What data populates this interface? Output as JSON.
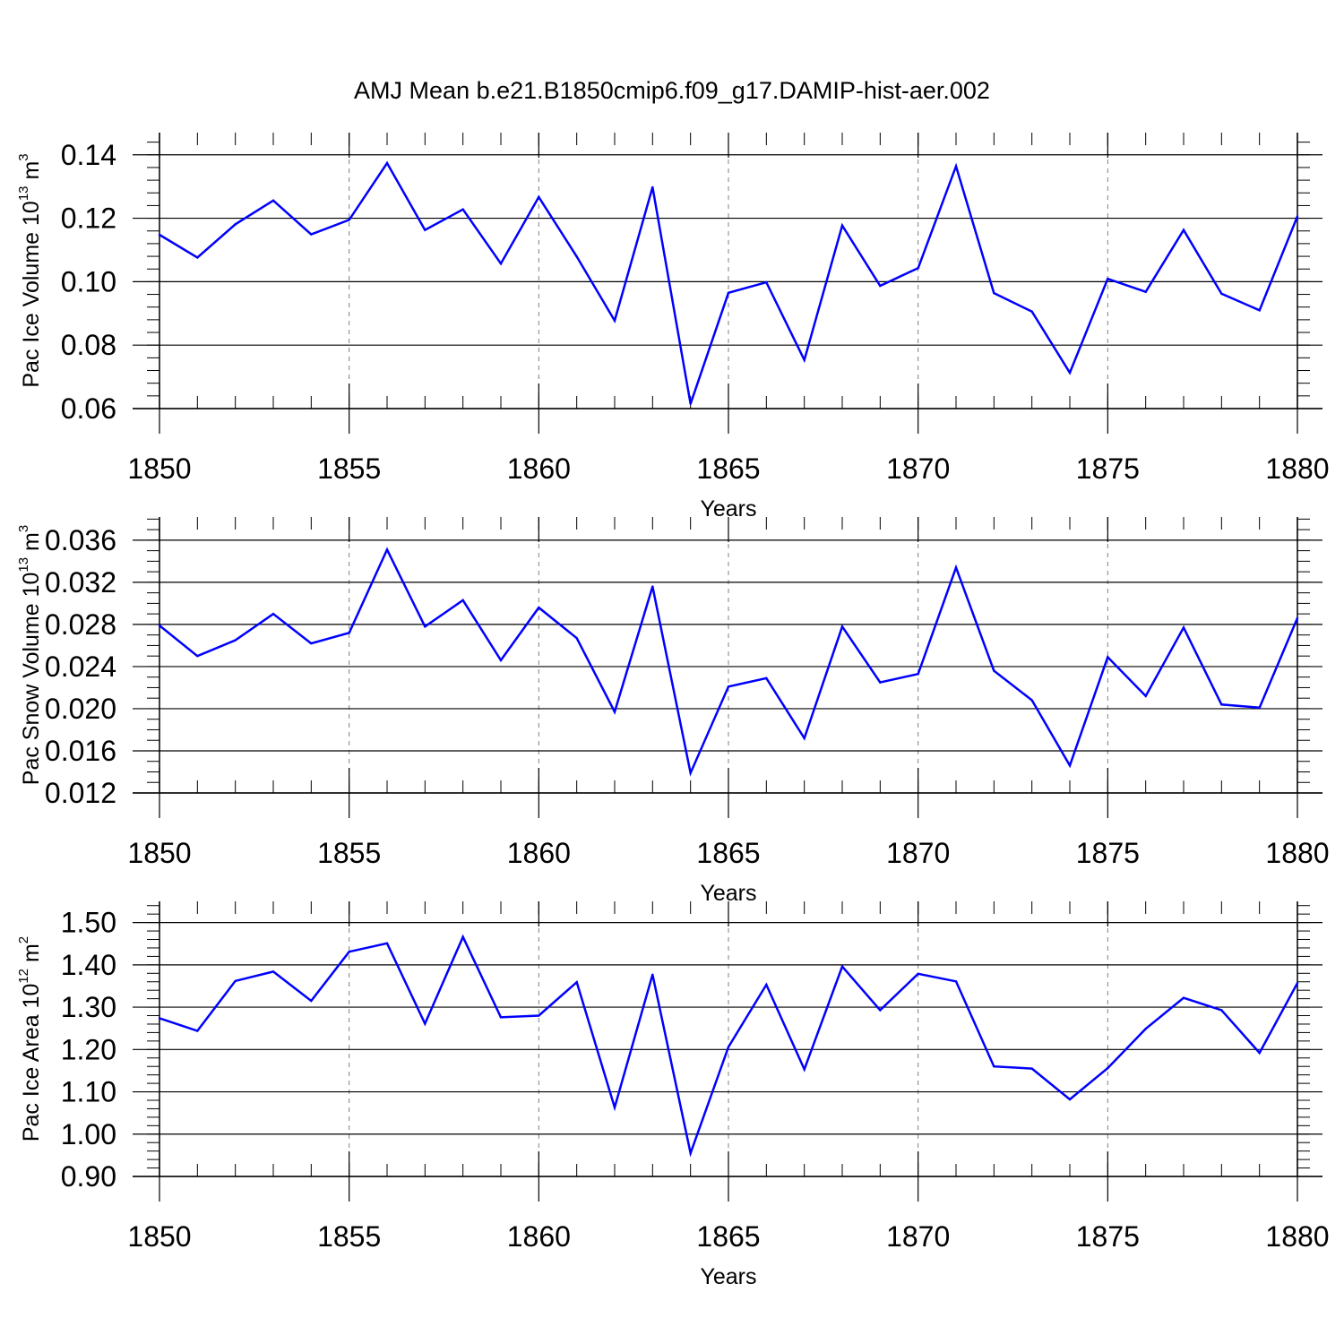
{
  "title": "AMJ Mean b.e21.B1850cmip6.f09_g17.DAMIP-hist-aer.002",
  "colors": {
    "line": "#0000ff",
    "axis": "#000000",
    "grid": "#808080"
  },
  "chart_data": [
    {
      "type": "line",
      "ylabel": {
        "base": "Pac Ice Volume 10",
        "exp": "13",
        "unit": " m",
        "unit_exp": "3"
      },
      "xlabel": "Years",
      "xlim": [
        1850,
        1880
      ],
      "ylim": [
        0.06,
        0.14
      ],
      "yticks": [
        0.06,
        0.08,
        0.1,
        0.12,
        0.14
      ],
      "yticklabels": [
        "0.06",
        "0.08",
        "0.10",
        "0.12",
        "0.14"
      ],
      "ymax_plot": 0.147,
      "yminor": 0.004,
      "xticks": [
        1850,
        1855,
        1860,
        1865,
        1870,
        1875,
        1880
      ],
      "xticklabels": [
        "1850",
        "1855",
        "1860",
        "1865",
        "1870",
        "1875",
        "1880"
      ],
      "grid": "vertical dashed at major x ticks",
      "x": [
        1850,
        1851,
        1852,
        1853,
        1854,
        1855,
        1856,
        1857,
        1858,
        1859,
        1860,
        1861,
        1862,
        1863,
        1864,
        1865,
        1866,
        1867,
        1868,
        1869,
        1870,
        1871,
        1872,
        1873,
        1874,
        1875,
        1876,
        1877,
        1878,
        1879,
        1880
      ],
      "values": [
        0.1148,
        0.1076,
        0.1181,
        0.1256,
        0.1149,
        0.1195,
        0.1374,
        0.1163,
        0.1228,
        0.1057,
        0.1267,
        0.1079,
        0.0877,
        0.1298,
        0.0615,
        0.0965,
        0.0998,
        0.0753,
        0.1177,
        0.0987,
        0.1043,
        0.1364,
        0.0964,
        0.0906,
        0.0713,
        0.1009,
        0.0968,
        0.1163,
        0.0962,
        0.091,
        0.1206
      ]
    },
    {
      "type": "line",
      "ylabel": {
        "base": "Pac Snow Volume 10",
        "exp": "13",
        "unit": " m",
        "unit_exp": "3"
      },
      "xlabel": "Years",
      "xlim": [
        1850,
        1880
      ],
      "ylim": [
        0.012,
        0.036
      ],
      "yticks": [
        0.012,
        0.016,
        0.02,
        0.024,
        0.028,
        0.032,
        0.036
      ],
      "yticklabels": [
        "0.012",
        "0.016",
        "0.020",
        "0.024",
        "0.028",
        "0.032",
        "0.036"
      ],
      "ymax_plot": 0.0382,
      "yminor": 0.001,
      "xticks": [
        1850,
        1855,
        1860,
        1865,
        1870,
        1875,
        1880
      ],
      "xticklabels": [
        "1850",
        "1855",
        "1860",
        "1865",
        "1870",
        "1875",
        "1880"
      ],
      "grid": "vertical dashed at major x ticks",
      "x": [
        1850,
        1851,
        1852,
        1853,
        1854,
        1855,
        1856,
        1857,
        1858,
        1859,
        1860,
        1861,
        1862,
        1863,
        1864,
        1865,
        1866,
        1867,
        1868,
        1869,
        1870,
        1871,
        1872,
        1873,
        1874,
        1875,
        1876,
        1877,
        1878,
        1879,
        1880
      ],
      "values": [
        0.0279,
        0.025,
        0.0265,
        0.029,
        0.0262,
        0.0272,
        0.0351,
        0.0278,
        0.0303,
        0.0246,
        0.0296,
        0.0267,
        0.0197,
        0.0316,
        0.0139,
        0.0221,
        0.0229,
        0.0172,
        0.0278,
        0.0225,
        0.0233,
        0.0334,
        0.0236,
        0.0208,
        0.0146,
        0.0249,
        0.0212,
        0.0277,
        0.0204,
        0.0201,
        0.0286
      ]
    },
    {
      "type": "line",
      "ylabel": {
        "base": "Pac Ice Area 10",
        "exp": "12",
        "unit": " m",
        "unit_exp": "2"
      },
      "xlabel": "Years",
      "xlim": [
        1850,
        1880
      ],
      "ylim": [
        0.9,
        1.5
      ],
      "yticks": [
        0.9,
        1.0,
        1.1,
        1.2,
        1.3,
        1.4,
        1.5
      ],
      "yticklabels": [
        "0.90",
        "1.00",
        "1.10",
        "1.20",
        "1.30",
        "1.40",
        "1.50"
      ],
      "ymax_plot": 1.55,
      "yminor": 0.02,
      "xticks": [
        1850,
        1855,
        1860,
        1865,
        1870,
        1875,
        1880
      ],
      "xticklabels": [
        "1850",
        "1855",
        "1860",
        "1865",
        "1870",
        "1875",
        "1880"
      ],
      "grid": "vertical dashed at major x ticks",
      "x": [
        1850,
        1851,
        1852,
        1853,
        1854,
        1855,
        1856,
        1857,
        1858,
        1859,
        1860,
        1861,
        1862,
        1863,
        1864,
        1865,
        1866,
        1867,
        1868,
        1869,
        1870,
        1871,
        1872,
        1873,
        1874,
        1875,
        1876,
        1877,
        1878,
        1879,
        1880
      ],
      "values": [
        1.274,
        1.244,
        1.362,
        1.384,
        1.315,
        1.431,
        1.451,
        1.261,
        1.466,
        1.276,
        1.28,
        1.359,
        1.063,
        1.377,
        0.955,
        1.206,
        1.353,
        1.153,
        1.396,
        1.293,
        1.379,
        1.361,
        1.16,
        1.155,
        1.082,
        1.156,
        1.249,
        1.322,
        1.293,
        1.192,
        1.357
      ]
    }
  ]
}
